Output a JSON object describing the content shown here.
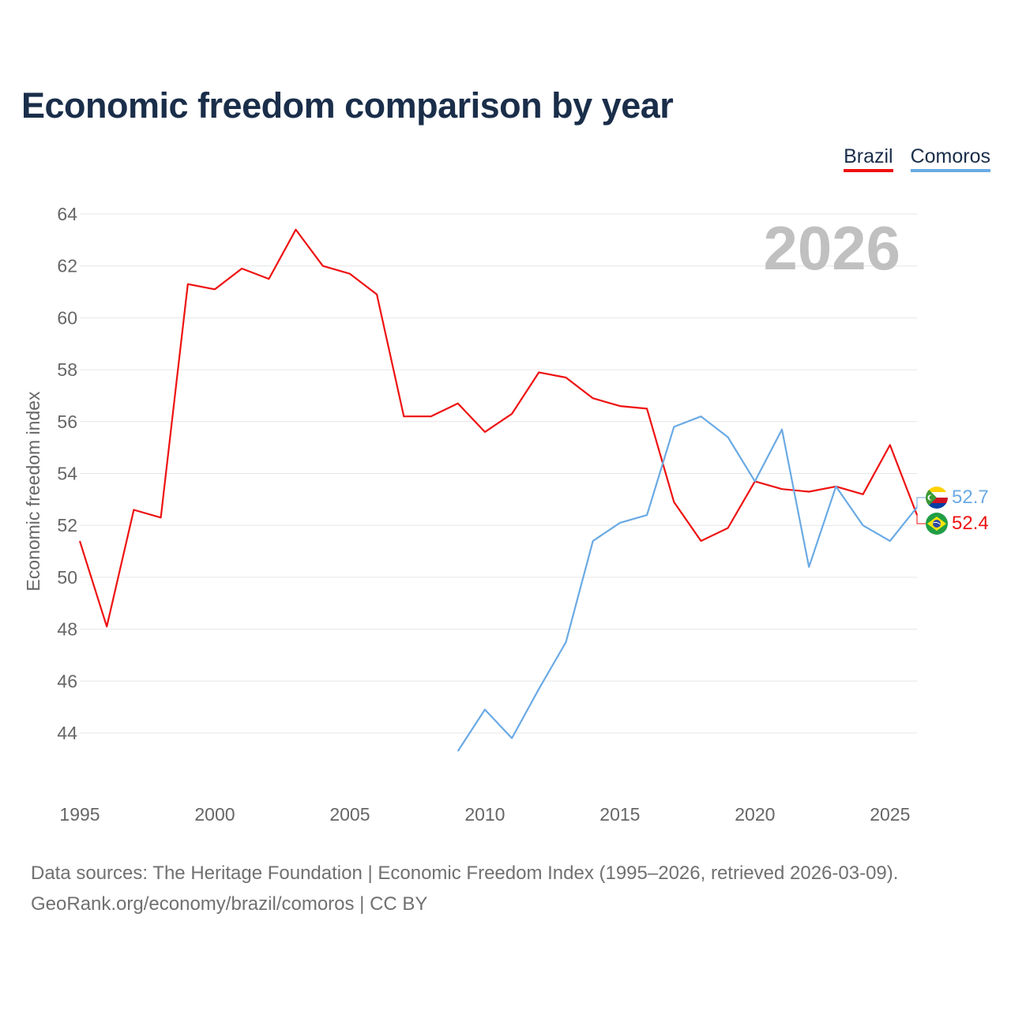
{
  "title": "Economic freedom comparison by year",
  "legend": [
    {
      "name": "Brazil",
      "color": "#ee1111"
    },
    {
      "name": "Comoros",
      "color": "#6aaae4"
    }
  ],
  "footer": {
    "line1": "Data sources: The Heritage Foundation | Economic Freedom Index (1995–2026, retrieved 2026-03-09).",
    "line2": "GeoRank.org/economy/brazil/comoros | CC BY"
  },
  "chart_data": {
    "type": "line",
    "title": "Economic freedom comparison by year",
    "xlabel": "",
    "ylabel": "Economic freedom index",
    "xlim": [
      1995,
      2026
    ],
    "ylim": [
      42,
      64
    ],
    "x_ticks": [
      1995,
      2000,
      2005,
      2010,
      2015,
      2020,
      2025
    ],
    "y_ticks": [
      44,
      46,
      48,
      50,
      52,
      54,
      56,
      58,
      60,
      62,
      64
    ],
    "watermark_year": "2026",
    "grid": true,
    "legend_position": "top-right",
    "series": [
      {
        "name": "Brazil",
        "color": "#ee1111",
        "end_label": "52.4",
        "flag": "brazil-flag-icon",
        "x": [
          1995,
          1996,
          1997,
          1998,
          1999,
          2000,
          2001,
          2002,
          2003,
          2004,
          2005,
          2006,
          2007,
          2008,
          2009,
          2010,
          2011,
          2012,
          2013,
          2014,
          2015,
          2016,
          2017,
          2018,
          2019,
          2020,
          2021,
          2022,
          2023,
          2024,
          2025,
          2026
        ],
        "values": [
          51.4,
          48.1,
          52.6,
          52.3,
          61.3,
          61.1,
          61.9,
          61.5,
          63.4,
          62.0,
          61.7,
          60.9,
          56.2,
          56.2,
          56.7,
          55.6,
          56.3,
          57.9,
          57.7,
          56.9,
          56.6,
          56.5,
          52.9,
          51.4,
          51.9,
          53.7,
          53.4,
          53.3,
          53.5,
          53.2,
          55.1,
          52.4
        ]
      },
      {
        "name": "Comoros",
        "color": "#6aaae4",
        "end_label": "52.7",
        "flag": "comoros-flag-icon",
        "x": [
          2009,
          2010,
          2011,
          2012,
          2013,
          2014,
          2015,
          2016,
          2017,
          2018,
          2019,
          2020,
          2021,
          2022,
          2023,
          2024,
          2025,
          2026
        ],
        "values": [
          43.3,
          44.9,
          43.8,
          45.7,
          47.5,
          51.4,
          52.1,
          52.4,
          55.8,
          56.2,
          55.4,
          53.7,
          55.7,
          50.4,
          53.5,
          52.0,
          51.4,
          52.7
        ]
      }
    ]
  }
}
